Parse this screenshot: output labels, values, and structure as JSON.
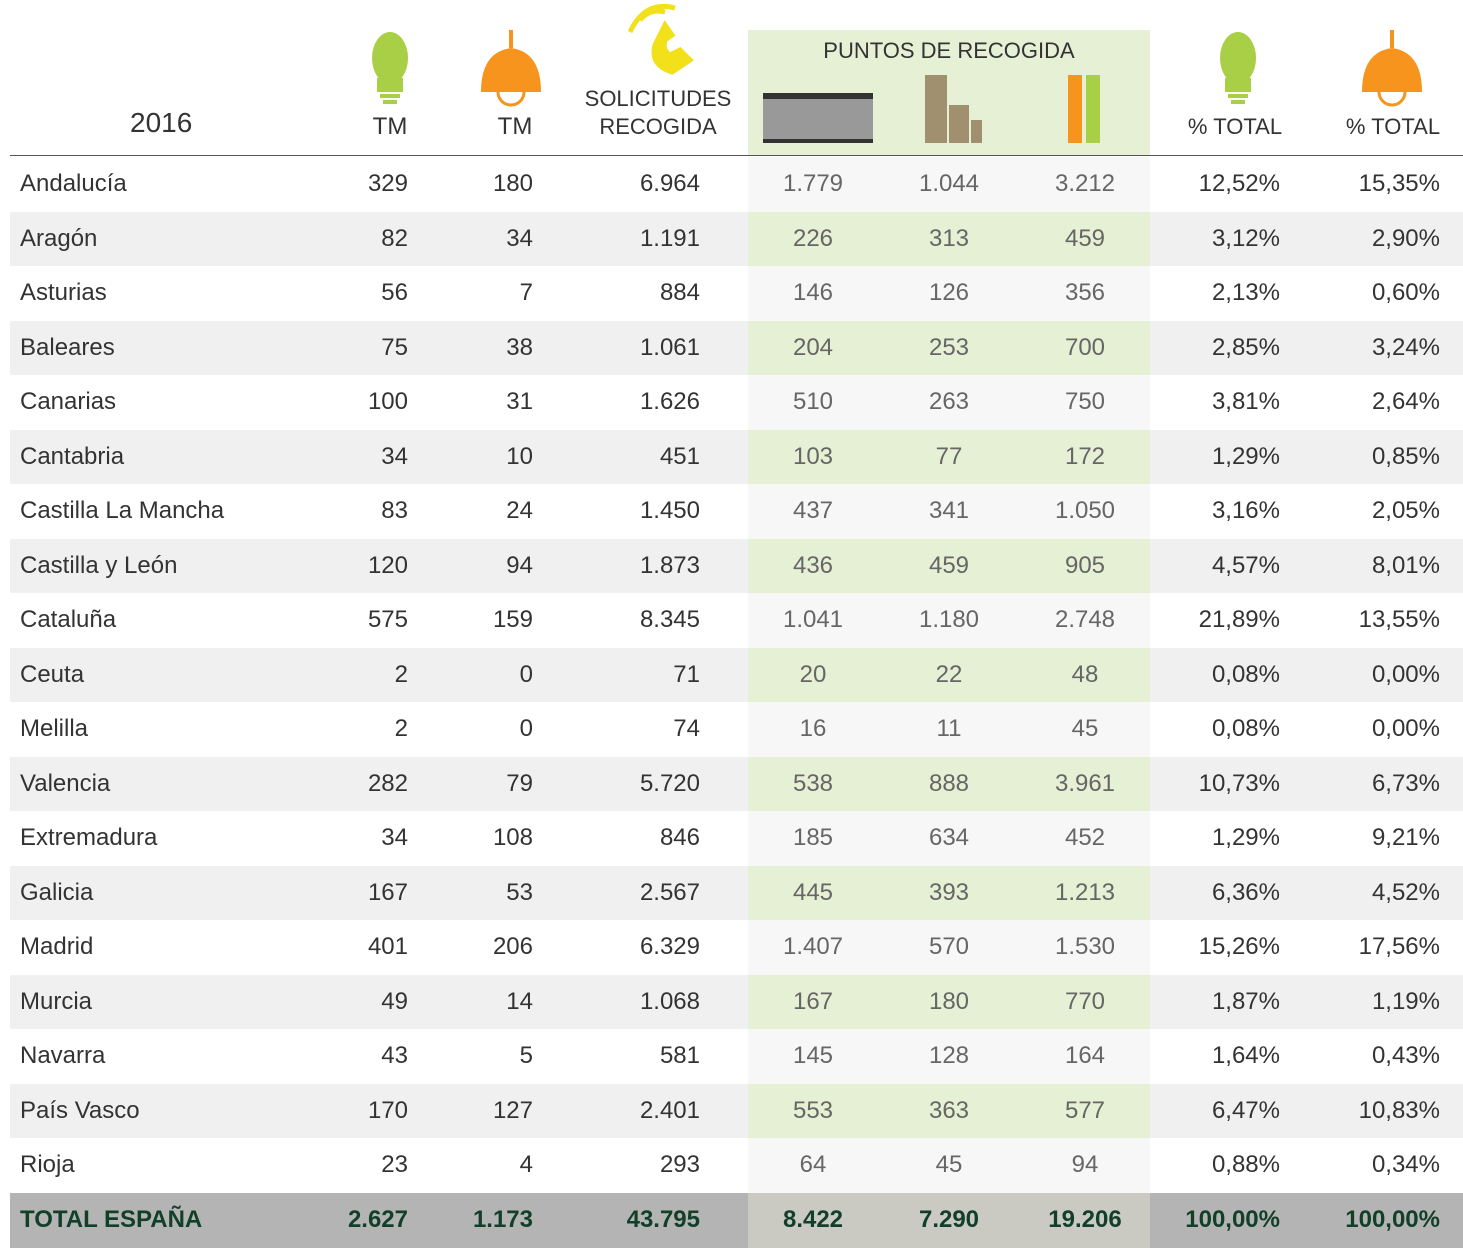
{
  "header": {
    "year": "2016",
    "columns": [
      "TM",
      "TM",
      "SOLICITUDES",
      "RECOGIDA",
      "PUNTOS DE RECOGIDA",
      "% TOTAL",
      "% TOTAL"
    ]
  },
  "table": {
    "rows": [
      [
        "Andalucía",
        "329",
        "180",
        "6.964",
        "1.779",
        "1.044",
        "3.212",
        "12,52%",
        "15,35%"
      ],
      [
        "Aragón",
        "82",
        "34",
        "1.191",
        "226",
        "313",
        "459",
        "3,12%",
        "2,90%"
      ],
      [
        "Asturias",
        "56",
        "7",
        "884",
        "146",
        "126",
        "356",
        "2,13%",
        "0,60%"
      ],
      [
        "Baleares",
        "75",
        "38",
        "1.061",
        "204",
        "253",
        "700",
        "2,85%",
        "3,24%"
      ],
      [
        "Canarias",
        "100",
        "31",
        "1.626",
        "510",
        "263",
        "750",
        "3,81%",
        "2,64%"
      ],
      [
        "Cantabria",
        "34",
        "10",
        "451",
        "103",
        "77",
        "172",
        "1,29%",
        "0,85%"
      ],
      [
        "Castilla La Mancha",
        "83",
        "24",
        "1.450",
        "437",
        "341",
        "1.050",
        "3,16%",
        "2,05%"
      ],
      [
        "Castilla y León",
        "120",
        "94",
        "1.873",
        "436",
        "459",
        "905",
        "4,57%",
        "8,01%"
      ],
      [
        "Cataluña",
        "575",
        "159",
        "8.345",
        "1.041",
        "1.180",
        "2.748",
        "21,89%",
        "13,55%"
      ],
      [
        "Ceuta",
        "2",
        "0",
        "71",
        "20",
        "22",
        "48",
        "0,08%",
        "0,00%"
      ],
      [
        "Melilla",
        "2",
        "0",
        "74",
        "16",
        "11",
        "45",
        "0,08%",
        "0,00%"
      ],
      [
        "Valencia",
        "282",
        "79",
        "5.720",
        "538",
        "888",
        "3.961",
        "10,73%",
        "6,73%"
      ],
      [
        "Extremadura",
        "34",
        "108",
        "846",
        "185",
        "634",
        "452",
        "1,29%",
        "9,21%"
      ],
      [
        "Galicia",
        "167",
        "53",
        "2.567",
        "445",
        "393",
        "1.213",
        "6,36%",
        "4,52%"
      ],
      [
        "Madrid",
        "401",
        "206",
        "6.329",
        "1.407",
        "570",
        "1.530",
        "15,26%",
        "17,56%"
      ],
      [
        "Murcia",
        "49",
        "14",
        "1.068",
        "167",
        "180",
        "770",
        "1,87%",
        "1,19%"
      ],
      [
        "Navarra",
        "43",
        "5",
        "581",
        "145",
        "128",
        "164",
        "1,64%",
        "0,43%"
      ],
      [
        "País Vasco",
        "170",
        "127",
        "2.401",
        "553",
        "363",
        "577",
        "6,47%",
        "10,83%"
      ],
      [
        "Rioja",
        "23",
        "4",
        "293",
        "64",
        "45",
        "94",
        "0,88%",
        "0,34%"
      ]
    ],
    "total": [
      "TOTAL ESPAÑA",
      "2.627",
      "1.173",
      "43.795",
      "8.422",
      "7.290",
      "19.206",
      "100,00%",
      "100,00%"
    ]
  }
}
